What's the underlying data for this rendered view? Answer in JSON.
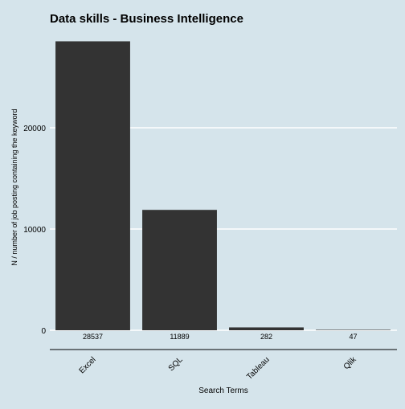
{
  "chart_data": {
    "type": "bar",
    "title": "Data skills - Business Intelligence",
    "xlabel": "Search Terms",
    "ylabel": "N / number of job posting containing the keyword",
    "categories": [
      "Excel",
      "SQL",
      "Tableau",
      "Qlik"
    ],
    "values": [
      28537,
      11889,
      282,
      47
    ],
    "data_labels": [
      "28537",
      "11889",
      "282",
      "47"
    ],
    "yticks": [
      0,
      10000,
      20000
    ],
    "ytick_labels": [
      "0",
      "10000",
      "20000"
    ],
    "ylim": [
      0,
      30000
    ],
    "grid": "horizontal-major",
    "legend": "none",
    "colors": {
      "background": "#d5e4eb",
      "bar": "#333333",
      "grid": "#ffffff",
      "text": "#000000"
    }
  }
}
